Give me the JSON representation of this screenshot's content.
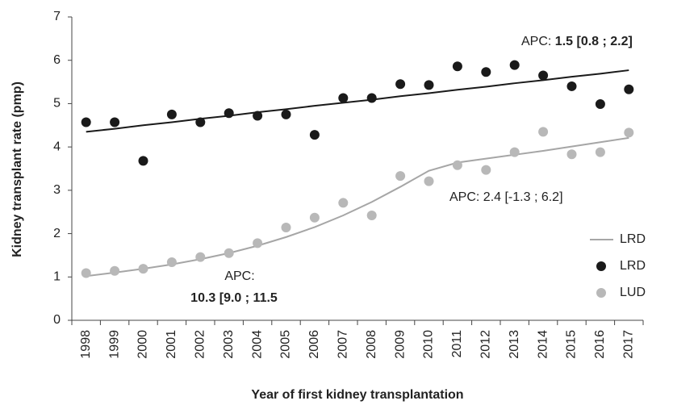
{
  "chart_data": {
    "type": "line_scatter",
    "x_label": "Year of first kidney transplantation",
    "y_label": "Kidney transplant rate (pmp)",
    "categories": [
      "1998",
      "1999",
      "2000",
      "2001",
      "2002",
      "2003",
      "2004",
      "2005",
      "2006",
      "2007",
      "2008",
      "2009",
      "2010",
      "2011",
      "2012",
      "2013",
      "2014",
      "2015",
      "2016",
      "2017"
    ],
    "ylim": [
      0,
      7
    ],
    "yticks": [
      0,
      1,
      2,
      3,
      4,
      5,
      6,
      7
    ],
    "grid": false,
    "legend": "lower right",
    "series": [
      {
        "kind": "line",
        "color": "#1a1a1a",
        "legend": false,
        "values": [
          4.35,
          4.42,
          4.5,
          4.57,
          4.65,
          4.72,
          4.8,
          4.87,
          4.95,
          5.02,
          5.09,
          5.17,
          5.24,
          5.32,
          5.39,
          5.47,
          5.54,
          5.62,
          5.69,
          5.77
        ]
      },
      {
        "kind": "line",
        "name": "LRD",
        "color": "#a6a6a6",
        "values": [
          1.02,
          1.1,
          1.19,
          1.29,
          1.41,
          1.55,
          1.72,
          1.92,
          2.15,
          2.42,
          2.73,
          3.08,
          3.45,
          3.64,
          3.73,
          3.82,
          3.91,
          4.01,
          4.11,
          4.21
        ]
      },
      {
        "kind": "scatter",
        "name": "LRD",
        "color": "#1a1a1a",
        "values": [
          4.57,
          4.57,
          3.68,
          4.75,
          4.57,
          4.78,
          4.72,
          4.75,
          4.28,
          5.13,
          5.13,
          5.45,
          5.43,
          5.86,
          5.73,
          5.89,
          5.65,
          5.4,
          4.99,
          5.33
        ]
      },
      {
        "kind": "scatter",
        "name": "LUD",
        "color": "#b8b8b8",
        "values": [
          1.09,
          1.14,
          1.19,
          1.34,
          1.46,
          1.55,
          1.78,
          2.14,
          2.37,
          2.71,
          2.42,
          3.33,
          3.21,
          3.58,
          3.47,
          3.88,
          4.35,
          3.83,
          3.88,
          4.33
        ]
      }
    ],
    "annotations": [
      "APC:",
      "1.5 [0.8 ; 2.2]",
      "APC: 2.4 [-1.3 ; 6.2]",
      "APC:",
      "10.3 [9.0 ; 11.5"
    ]
  }
}
